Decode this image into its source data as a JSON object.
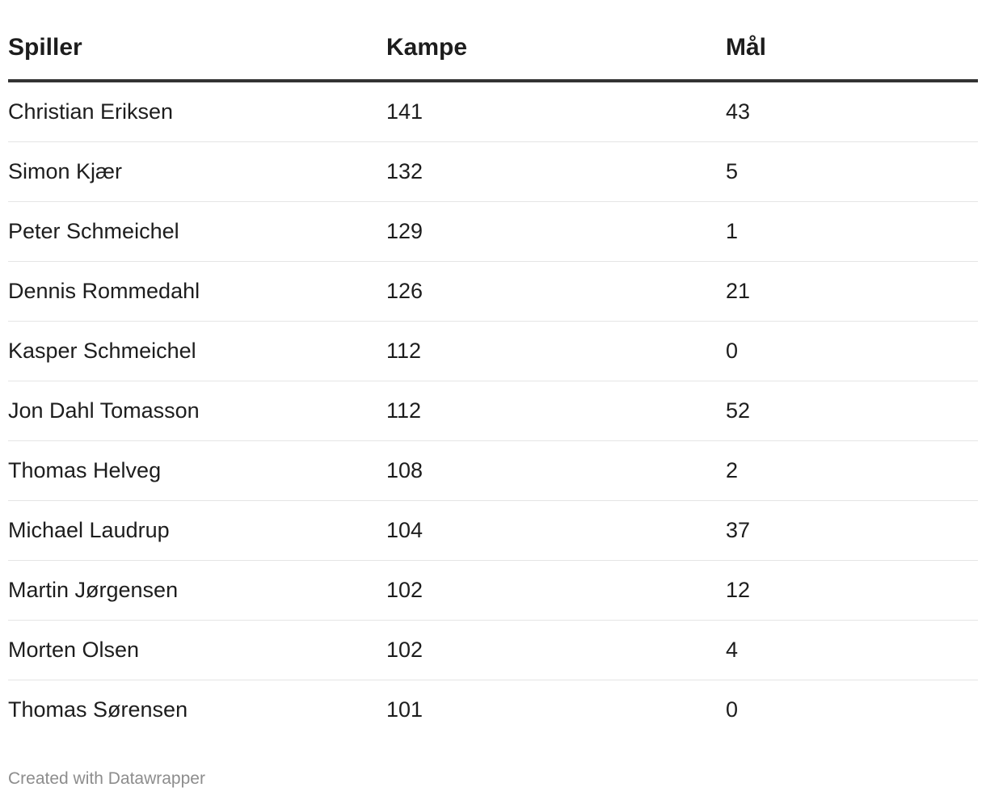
{
  "chart_data": {
    "type": "table",
    "columns": [
      "Spiller",
      "Kampe",
      "Mål"
    ],
    "rows": [
      [
        "Christian Eriksen",
        "141",
        "43"
      ],
      [
        "Simon Kjær",
        "132",
        "5"
      ],
      [
        "Peter Schmeichel",
        "129",
        "1"
      ],
      [
        "Dennis Rommedahl",
        "126",
        "21"
      ],
      [
        "Kasper Schmeichel",
        "112",
        "0"
      ],
      [
        "Jon Dahl Tomasson",
        "112",
        "52"
      ],
      [
        "Thomas Helveg",
        "108",
        "2"
      ],
      [
        "Michael Laudrup",
        "104",
        "37"
      ],
      [
        "Martin Jørgensen",
        "102",
        "12"
      ],
      [
        "Morten Olsen",
        "102",
        "4"
      ],
      [
        "Thomas Sørensen",
        "101",
        "0"
      ]
    ]
  },
  "footer": {
    "credit": "Created with Datawrapper"
  }
}
